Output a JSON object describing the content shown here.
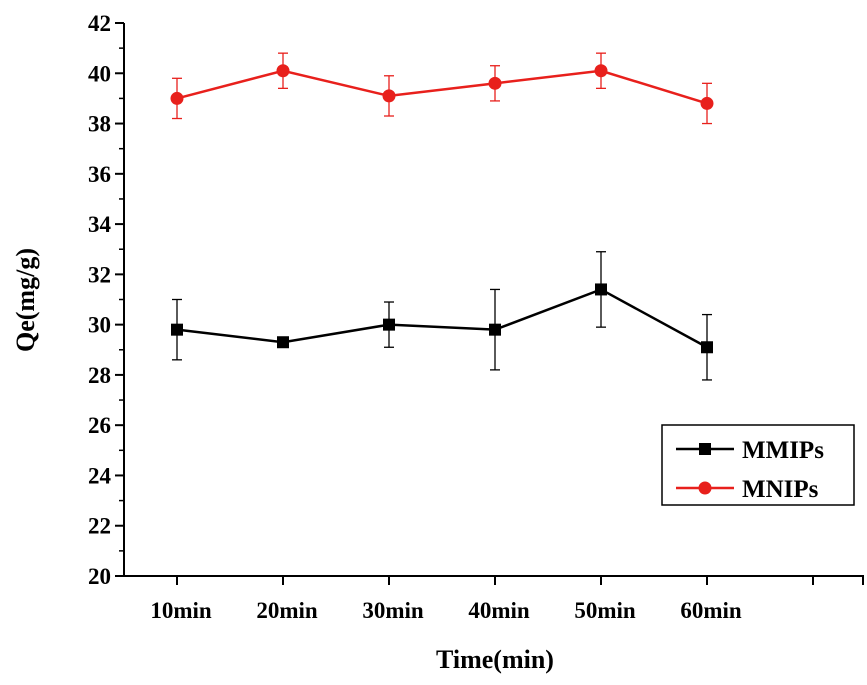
{
  "chart_data": {
    "type": "line",
    "title": "",
    "xlabel": "Time(min)",
    "ylabel": "Qe(mg/g)",
    "categories": [
      "10min",
      "20min",
      "30min",
      "40min",
      "50min",
      "60min"
    ],
    "ylim": [
      20,
      42
    ],
    "yticks": [
      "20",
      "22",
      "24",
      "26",
      "28",
      "30",
      "32",
      "34",
      "36",
      "38",
      "40",
      "42"
    ],
    "grid": false,
    "legend_position": "right",
    "series": [
      {
        "name": "MMIPs",
        "color": "#000000",
        "marker": "square",
        "values": [
          29.8,
          29.3,
          30.0,
          29.8,
          31.4,
          29.1
        ],
        "errors": [
          1.2,
          0.1,
          0.9,
          1.6,
          1.5,
          1.3
        ]
      },
      {
        "name": "MNIPs",
        "color": "#e8201c",
        "marker": "circle",
        "values": [
          39.0,
          40.1,
          39.1,
          39.6,
          40.1,
          38.8
        ],
        "errors": [
          0.8,
          0.7,
          0.8,
          0.7,
          0.7,
          0.8
        ]
      }
    ]
  }
}
